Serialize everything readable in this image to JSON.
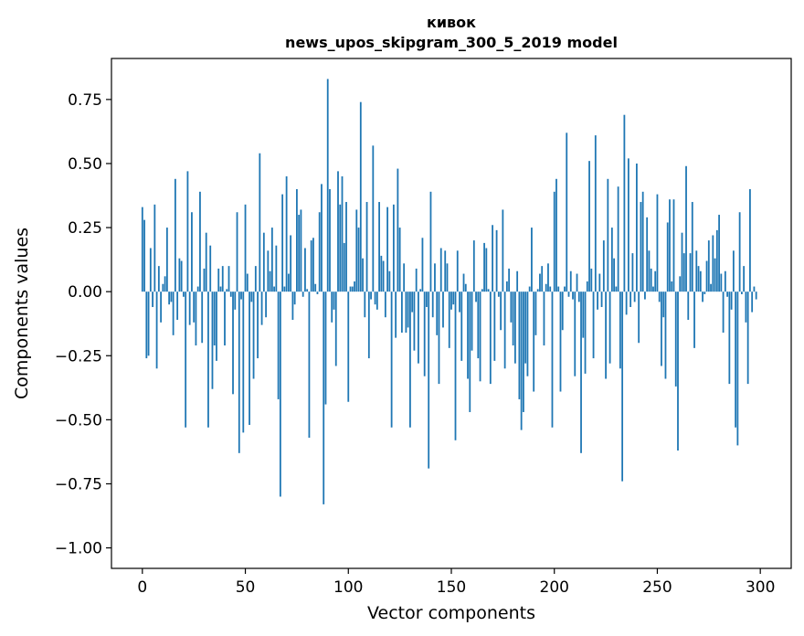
{
  "chart_data": {
    "type": "bar",
    "title": "кивок",
    "subtitle": "news_upos_skipgram_300_5_2019 model",
    "xlabel": "Vector components",
    "ylabel": "Components values",
    "xlim": [
      -15,
      315
    ],
    "ylim": [
      -1.08,
      0.91
    ],
    "xticks": [
      0,
      50,
      100,
      150,
      200,
      250,
      300
    ],
    "yticks": [
      -1.0,
      -0.75,
      -0.5,
      -0.25,
      0.0,
      0.25,
      0.5,
      0.75
    ],
    "ytick_labels": [
      "−1.00",
      "−0.75",
      "−0.50",
      "−0.25",
      "0.00",
      "0.25",
      "0.50",
      "0.75"
    ],
    "xtick_labels": [
      "0",
      "50",
      "100",
      "150",
      "200",
      "250",
      "300"
    ],
    "grid": false,
    "bar_color": "#1f77b4",
    "x": "0..299",
    "values": [
      0.33,
      0.28,
      -0.26,
      -0.25,
      0.17,
      -0.06,
      0.34,
      -0.3,
      0.1,
      -0.12,
      0.03,
      0.06,
      0.25,
      -0.05,
      -0.04,
      -0.17,
      0.44,
      -0.11,
      0.13,
      0.12,
      -0.02,
      -0.53,
      0.47,
      -0.13,
      0.31,
      -0.12,
      -0.21,
      0.02,
      0.39,
      -0.2,
      0.09,
      0.23,
      -0.53,
      0.18,
      -0.38,
      -0.21,
      -0.27,
      0.09,
      0.02,
      0.1,
      -0.21,
      0.01,
      0.1,
      -0.02,
      -0.4,
      -0.07,
      0.31,
      -0.63,
      -0.03,
      -0.55,
      0.34,
      0.07,
      -0.52,
      -0.04,
      -0.34,
      0.1,
      -0.26,
      0.54,
      -0.13,
      0.23,
      -0.1,
      0.16,
      0.08,
      0.25,
      0.02,
      0.18,
      -0.42,
      -0.8,
      0.38,
      0.02,
      0.45,
      0.07,
      0.22,
      -0.11,
      -0.05,
      0.4,
      0.3,
      0.32,
      -0.02,
      0.17,
      0.01,
      -0.57,
      0.2,
      0.21,
      0.03,
      -0.01,
      0.31,
      0.42,
      -0.83,
      -0.44,
      0.83,
      0.4,
      -0.12,
      -0.07,
      -0.29,
      0.47,
      0.34,
      0.45,
      0.19,
      0.35,
      -0.43,
      0.02,
      0.02,
      0.04,
      0.32,
      0.25,
      0.74,
      0.13,
      -0.1,
      0.35,
      -0.26,
      -0.03,
      0.57,
      -0.05,
      -0.07,
      0.35,
      0.14,
      0.12,
      -0.1,
      0.33,
      0.08,
      -0.53,
      0.34,
      -0.18,
      0.48,
      0.25,
      -0.16,
      0.11,
      -0.16,
      -0.14,
      -0.53,
      -0.08,
      -0.23,
      0.09,
      -0.28,
      0.01,
      0.21,
      -0.33,
      -0.06,
      -0.69,
      0.39,
      -0.1,
      0.11,
      -0.17,
      -0.36,
      0.17,
      -0.14,
      0.16,
      0.11,
      -0.22,
      -0.07,
      -0.05,
      -0.58,
      0.16,
      -0.08,
      -0.27,
      0.07,
      0.03,
      -0.34,
      -0.47,
      -0.23,
      0.2,
      -0.04,
      -0.26,
      -0.35,
      0.01,
      0.19,
      0.17,
      0.01,
      -0.36,
      0.26,
      -0.27,
      0.24,
      -0.02,
      -0.15,
      0.32,
      -0.3,
      0.04,
      0.09,
      -0.12,
      -0.21,
      -0.28,
      0.08,
      -0.42,
      -0.54,
      -0.47,
      -0.28,
      -0.33,
      0.02,
      0.25,
      -0.39,
      -0.17,
      0.01,
      0.07,
      0.1,
      -0.21,
      0.03,
      0.11,
      0.02,
      -0.53,
      0.39,
      0.44,
      0.02,
      -0.39,
      -0.15,
      0.02,
      0.62,
      -0.02,
      0.08,
      -0.03,
      -0.33,
      0.07,
      -0.04,
      -0.63,
      -0.18,
      -0.32,
      0.04,
      0.51,
      0.09,
      -0.26,
      0.61,
      -0.07,
      0.07,
      -0.06,
      0.2,
      -0.34,
      0.44,
      -0.28,
      0.25,
      0.13,
      0.02,
      0.41,
      -0.3,
      -0.74,
      0.69,
      -0.09,
      0.52,
      -0.06,
      0.15,
      -0.04,
      0.5,
      -0.2,
      0.35,
      0.39,
      -0.03,
      0.29,
      0.16,
      0.09,
      0.02,
      0.08,
      0.38,
      -0.04,
      -0.29,
      -0.1,
      -0.34,
      0.27,
      0.36,
      0.04,
      0.36,
      -0.37,
      -0.62,
      0.06,
      0.23,
      0.15,
      0.49,
      -0.11,
      0.15,
      0.35,
      -0.22,
      0.16,
      0.1,
      0.08,
      -0.04,
      -0.01,
      0.12,
      0.2,
      0.03,
      0.22,
      0.13,
      0.24,
      0.3,
      0.07,
      -0.16,
      0.08,
      -0.02,
      -0.36,
      -0.07,
      0.16,
      -0.53,
      -0.6,
      0.31,
      -0.01,
      0.1,
      -0.12,
      -0.36,
      0.4,
      -0.08,
      0.02,
      -0.03
    ]
  }
}
